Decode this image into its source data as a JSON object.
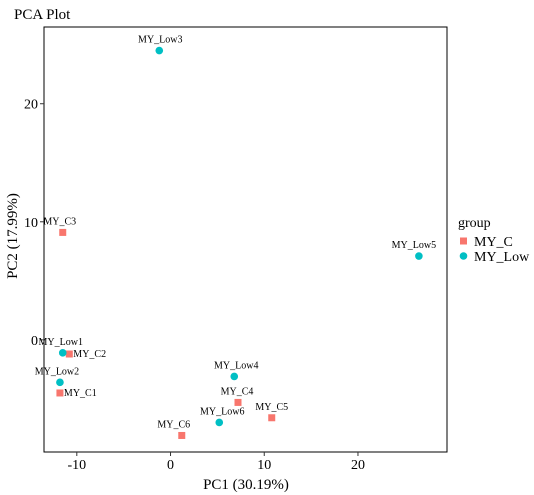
{
  "chart_data": {
    "type": "scatter",
    "title": "PCA Plot",
    "xlabel": "PC1 (30.19%)",
    "ylabel": "PC2 (17.99%)",
    "xlim": [
      -13.5,
      29.5
    ],
    "ylim": [
      -9.5,
      26.5
    ],
    "x_ticks": [
      -10,
      0,
      10,
      20
    ],
    "y_ticks": [
      0,
      10,
      20
    ],
    "grid": false,
    "legend": {
      "title": "group",
      "position": "right",
      "entries": [
        "MY_C",
        "MY_Low"
      ]
    },
    "series": [
      {
        "name": "MY_C",
        "color": "#F8766D",
        "marker": "square",
        "points": [
          {
            "label": "MY_C1",
            "x": -11.8,
            "y": -4.5
          },
          {
            "label": "MY_C2",
            "x": -10.8,
            "y": -1.2
          },
          {
            "label": "MY_C3",
            "x": -11.5,
            "y": 9.1
          },
          {
            "label": "MY_C4",
            "x": 7.2,
            "y": -5.3
          },
          {
            "label": "MY_C5",
            "x": 10.8,
            "y": -6.6
          },
          {
            "label": "MY_C6",
            "x": 1.2,
            "y": -8.1
          }
        ]
      },
      {
        "name": "MY_Low",
        "color": "#00BFC4",
        "marker": "circle",
        "points": [
          {
            "label": "MY_Low1",
            "x": -11.5,
            "y": -1.1
          },
          {
            "label": "MY_Low2",
            "x": -11.8,
            "y": -3.6
          },
          {
            "label": "MY_Low3",
            "x": -1.2,
            "y": 24.5
          },
          {
            "label": "MY_Low4",
            "x": 6.8,
            "y": -3.1
          },
          {
            "label": "MY_Low5",
            "x": 26.5,
            "y": 7.1
          },
          {
            "label": "MY_Low6",
            "x": 5.2,
            "y": -7.0
          }
        ]
      }
    ]
  }
}
